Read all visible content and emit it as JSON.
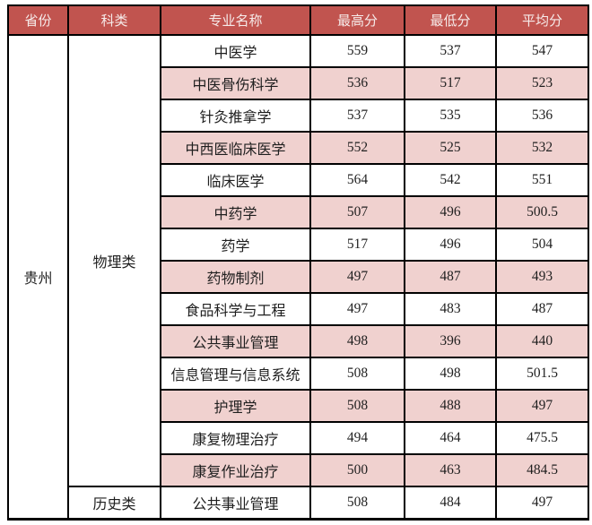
{
  "colors": {
    "header_bg": "#c1544f",
    "header_text": "#f6ebea",
    "stripe_bg": "#f0d1cf",
    "grid_line": "#000000",
    "body_text": "#1f1f1f",
    "page_bg": "#ffffff"
  },
  "table": {
    "headers": [
      "省份",
      "科类",
      "专业名称",
      "最高分",
      "最低分",
      "平均分"
    ],
    "province": "贵州",
    "groups": [
      {
        "category": "物理类",
        "rows": [
          [
            "中医学",
            "559",
            "537",
            "547"
          ],
          [
            "中医骨伤科学",
            "536",
            "517",
            "523"
          ],
          [
            "针灸推拿学",
            "537",
            "535",
            "536"
          ],
          [
            "中西医临床医学",
            "552",
            "525",
            "532"
          ],
          [
            "临床医学",
            "564",
            "542",
            "551"
          ],
          [
            "中药学",
            "507",
            "496",
            "500.5"
          ],
          [
            "药学",
            "517",
            "496",
            "504"
          ],
          [
            "药物制剂",
            "497",
            "487",
            "493"
          ],
          [
            "食品科学与工程",
            "497",
            "483",
            "487"
          ],
          [
            "公共事业管理",
            "498",
            "396",
            "440"
          ],
          [
            "信息管理与信息系统",
            "508",
            "498",
            "501.5"
          ],
          [
            "护理学",
            "508",
            "488",
            "497"
          ],
          [
            "康复物理治疗",
            "494",
            "464",
            "475.5"
          ],
          [
            "康复作业治疗",
            "500",
            "463",
            "484.5"
          ]
        ]
      },
      {
        "category": "历史类",
        "rows": [
          [
            "公共事业管理",
            "508",
            "484",
            "497"
          ]
        ]
      }
    ]
  }
}
